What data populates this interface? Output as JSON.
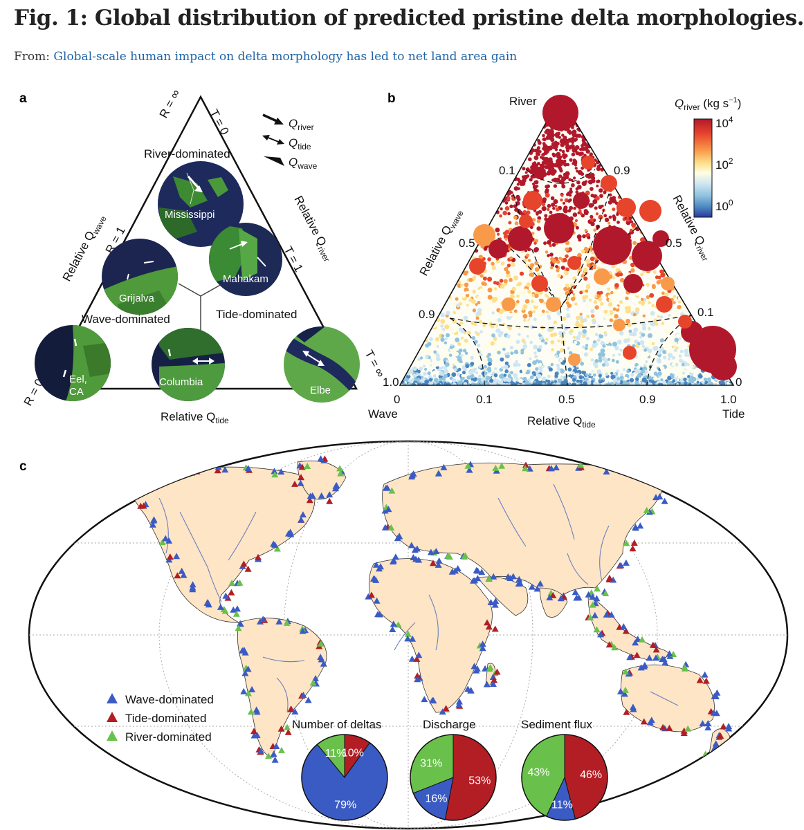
{
  "figure": {
    "title": "Fig. 1: Global distribution of predicted pristine delta morphologies.",
    "from_prefix": "From:",
    "from_link": "Global-scale human impact on delta morphology has led to net land area gain"
  },
  "panel_a": {
    "label": "a",
    "top_R": "R = ∞",
    "top_T": "T = 0",
    "left_R1": "R = 1",
    "left_R0": "R = 0",
    "right_T1": "T = 1",
    "right_Tinf": "T = ∞",
    "axis_wave": "Relative Q",
    "axis_wave_sub": "wave",
    "axis_river": "Relative Q",
    "axis_river_sub": "river",
    "axis_tide": "Relative Q",
    "axis_tide_sub": "tide",
    "legend": [
      {
        "q": "Q",
        "sub": "river"
      },
      {
        "q": "Q",
        "sub": "tide"
      },
      {
        "q": "Q",
        "sub": "wave"
      }
    ],
    "regions": {
      "river": "River-dominated",
      "wave": "Wave-dominated",
      "tide": "Tide-dominated"
    },
    "deltas": [
      "Mississippi",
      "Grijalva",
      "Mahakam",
      "Eel,",
      "CA",
      "Columbia",
      "Elbe"
    ]
  },
  "panel_b": {
    "label": "b",
    "apex_label": "River",
    "left_label": "Wave",
    "right_label": "Tide",
    "x_axis_label": "Relative Q",
    "x_axis_sub": "tide",
    "left_axis_label": "Relative Q",
    "left_axis_sub": "wave",
    "right_axis_label": "Relative Q",
    "right_axis_sub": "river",
    "x_ticks": [
      "0",
      "0.1",
      "0.5",
      "0.9",
      "1.0"
    ],
    "left_ticks": [
      "0.1",
      "0.5",
      "0.9",
      "1.0"
    ],
    "right_ticks": [
      "0.9",
      "0.5",
      "0.1",
      "0"
    ],
    "colorbar": {
      "title": "Q",
      "title_sub": "river",
      "title_unit": " (kg s",
      "title_exp": "−1",
      "title_end": ")",
      "ticks": [
        {
          "base": "10",
          "exp": "4"
        },
        {
          "base": "10",
          "exp": "2"
        },
        {
          "base": "10",
          "exp": "0"
        }
      ],
      "colors": [
        "#b2182b",
        "#e7442c",
        "#f99a4b",
        "#fee08b",
        "#fffde4",
        "#cfe6f1",
        "#8fc3de",
        "#4a85c0",
        "#2b3a9a"
      ]
    }
  },
  "panel_c": {
    "label": "c",
    "legend": [
      {
        "label": "Wave-dominated",
        "color": "#3b5bc4"
      },
      {
        "label": "Tide-dominated",
        "color": "#b21e24"
      },
      {
        "label": "River-dominated",
        "color": "#69c14b"
      }
    ],
    "land_color": "#fde5c6",
    "river_color": "#6a7fc0"
  },
  "chart_data": [
    {
      "type": "pie",
      "title": "Number of deltas",
      "categories": [
        "Wave-dominated",
        "Tide-dominated",
        "River-dominated"
      ],
      "values": [
        79,
        10,
        11
      ],
      "labels": [
        "79%",
        "10%",
        "11%"
      ]
    },
    {
      "type": "pie",
      "title": "Discharge",
      "categories": [
        "Wave-dominated",
        "Tide-dominated",
        "River-dominated"
      ],
      "values": [
        16,
        53,
        31
      ],
      "labels": [
        "16%",
        "53%",
        "31%"
      ]
    },
    {
      "type": "pie",
      "title": "Sediment flux",
      "categories": [
        "Wave-dominated",
        "Tide-dominated",
        "River-dominated"
      ],
      "values": [
        11,
        46,
        43
      ],
      "labels": [
        "11%",
        "46%",
        "43%"
      ]
    }
  ]
}
